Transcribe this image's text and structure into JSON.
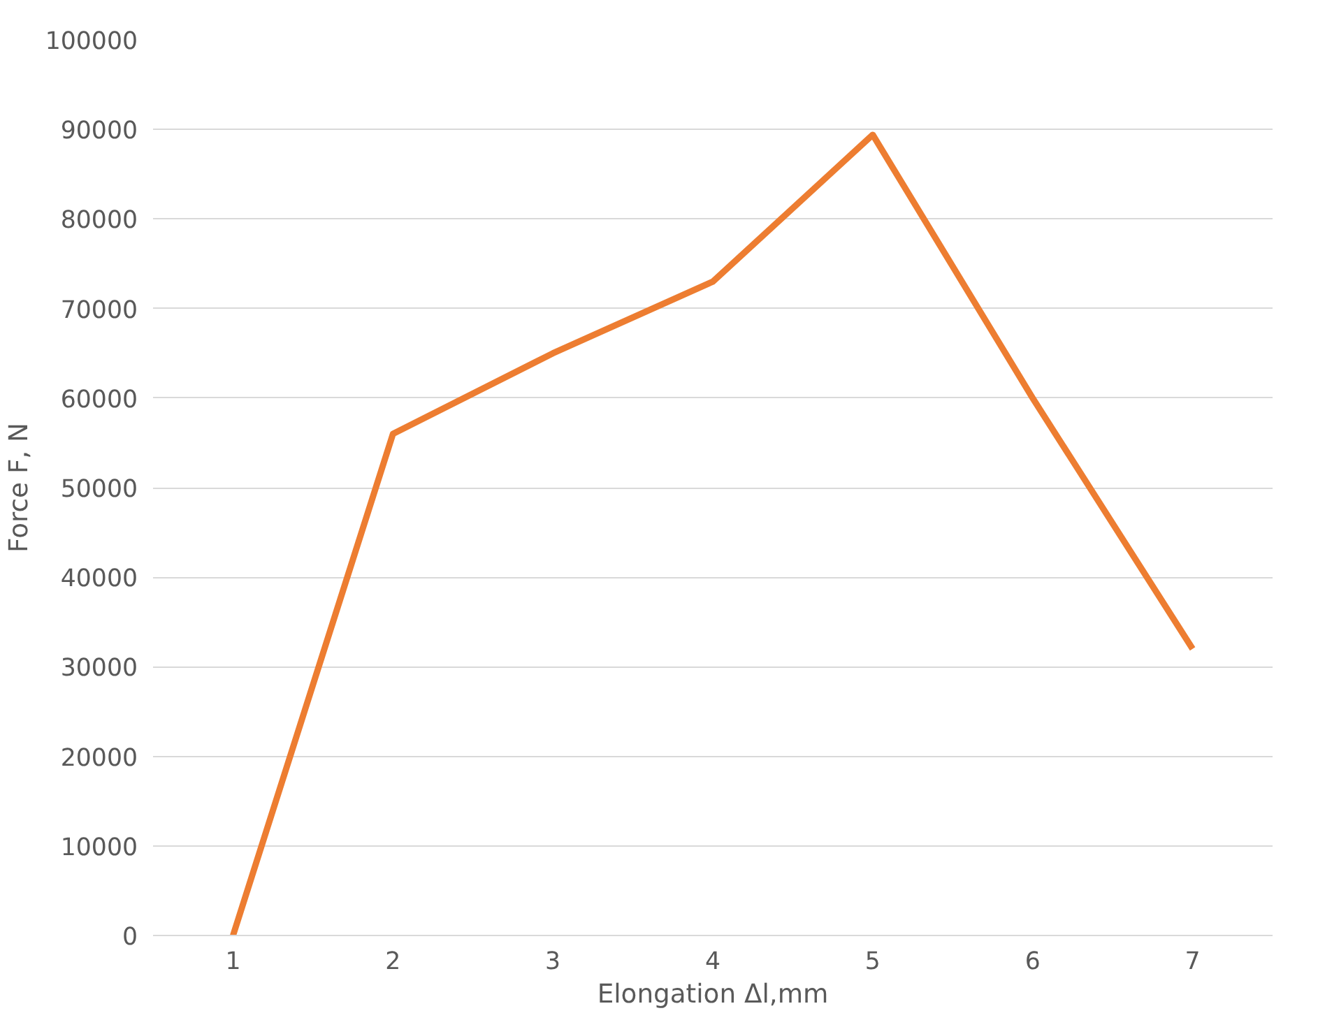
{
  "chart_data": {
    "type": "line",
    "xlabel": "Elongation Δl,mm",
    "ylabel": "Force F, N",
    "categories": [
      "1",
      "2",
      "3",
      "4",
      "5",
      "6",
      "7"
    ],
    "series": [
      {
        "color": "#ed7d31",
        "values": [
          0,
          56000,
          65000,
          73000,
          89400,
          60000,
          32000
        ]
      }
    ],
    "ylim": [
      0,
      100000
    ],
    "yticks": [
      0,
      10000,
      20000,
      30000,
      40000,
      50000,
      60000,
      70000,
      80000,
      90000,
      100000
    ],
    "grid": "y",
    "marker": "none",
    "line_style": "solid"
  }
}
